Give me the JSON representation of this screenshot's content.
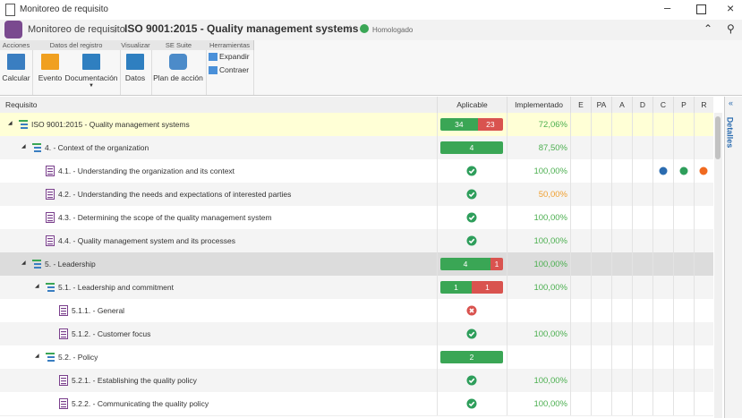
{
  "window": {
    "title": "Monitoreo de requisito"
  },
  "header": {
    "module": "Monitoreo de requisito",
    "record": "ISO 9001:2015 - Quality management systems",
    "status": "Homologado"
  },
  "toolbar": {
    "groups": [
      {
        "label": "Acciones",
        "buttons": [
          "Calcular"
        ]
      },
      {
        "label": "Datos del registro",
        "buttons": [
          "Evento",
          "Documentación"
        ]
      },
      {
        "label": "Visualizar",
        "buttons": [
          "Datos"
        ]
      },
      {
        "label": "SE Suite",
        "buttons": [
          "Plan de acción"
        ]
      },
      {
        "label": "Herramientas",
        "buttons": [
          "Expandir",
          "Contraer"
        ]
      }
    ]
  },
  "table": {
    "columns": [
      "Requisito",
      "Aplicable",
      "Implementado",
      "E",
      "PA",
      "A",
      "D",
      "C",
      "P",
      "R"
    ],
    "rows": [
      {
        "label": "ISO 9001:2015 - Quality management systems",
        "level": 0,
        "children": true,
        "applicable": [
          34,
          23
        ],
        "implemented": "72,06%",
        "highlight": true
      },
      {
        "label": "4. - Context of the organization",
        "level": 1,
        "children": true,
        "applicable": [
          4
        ],
        "implemented": "87,50%"
      },
      {
        "label": "4.1. - Understanding the organization and its context",
        "level": 2,
        "status": "ok",
        "implemented": "100,00%",
        "indicators": [
          "C",
          "P",
          "R"
        ]
      },
      {
        "label": "4.2. - Understanding the needs and expectations of interested parties",
        "level": 2,
        "status": "ok",
        "implemented": "50,00%",
        "warn": true
      },
      {
        "label": "4.3. - Determining the scope of the quality management system",
        "level": 2,
        "status": "ok",
        "implemented": "100,00%"
      },
      {
        "label": "4.4. - Quality management system and its processes",
        "level": 2,
        "status": "ok",
        "implemented": "100,00%"
      },
      {
        "label": "5. - Leadership",
        "level": 1,
        "children": true,
        "applicable": [
          4,
          1
        ],
        "implemented": "100,00%",
        "selected": true
      },
      {
        "label": "5.1. - Leadership and commitment",
        "level": 2,
        "children": true,
        "applicable": [
          1,
          1
        ],
        "implemented": "100,00%"
      },
      {
        "label": "5.1.1. - General",
        "level": 3,
        "status": "fail"
      },
      {
        "label": "5.1.2. - Customer focus",
        "level": 3,
        "status": "ok",
        "implemented": "100,00%"
      },
      {
        "label": "5.2. - Policy",
        "level": 2,
        "children": true,
        "applicable": [
          2
        ]
      },
      {
        "label": "5.2.1. - Establishing the quality policy",
        "level": 3,
        "status": "ok",
        "implemented": "100,00%"
      },
      {
        "label": "5.2.2. - Communicating the quality policy",
        "level": 3,
        "status": "ok",
        "implemented": "100,00%"
      }
    ]
  },
  "side_panel": {
    "label": "Detalles"
  }
}
